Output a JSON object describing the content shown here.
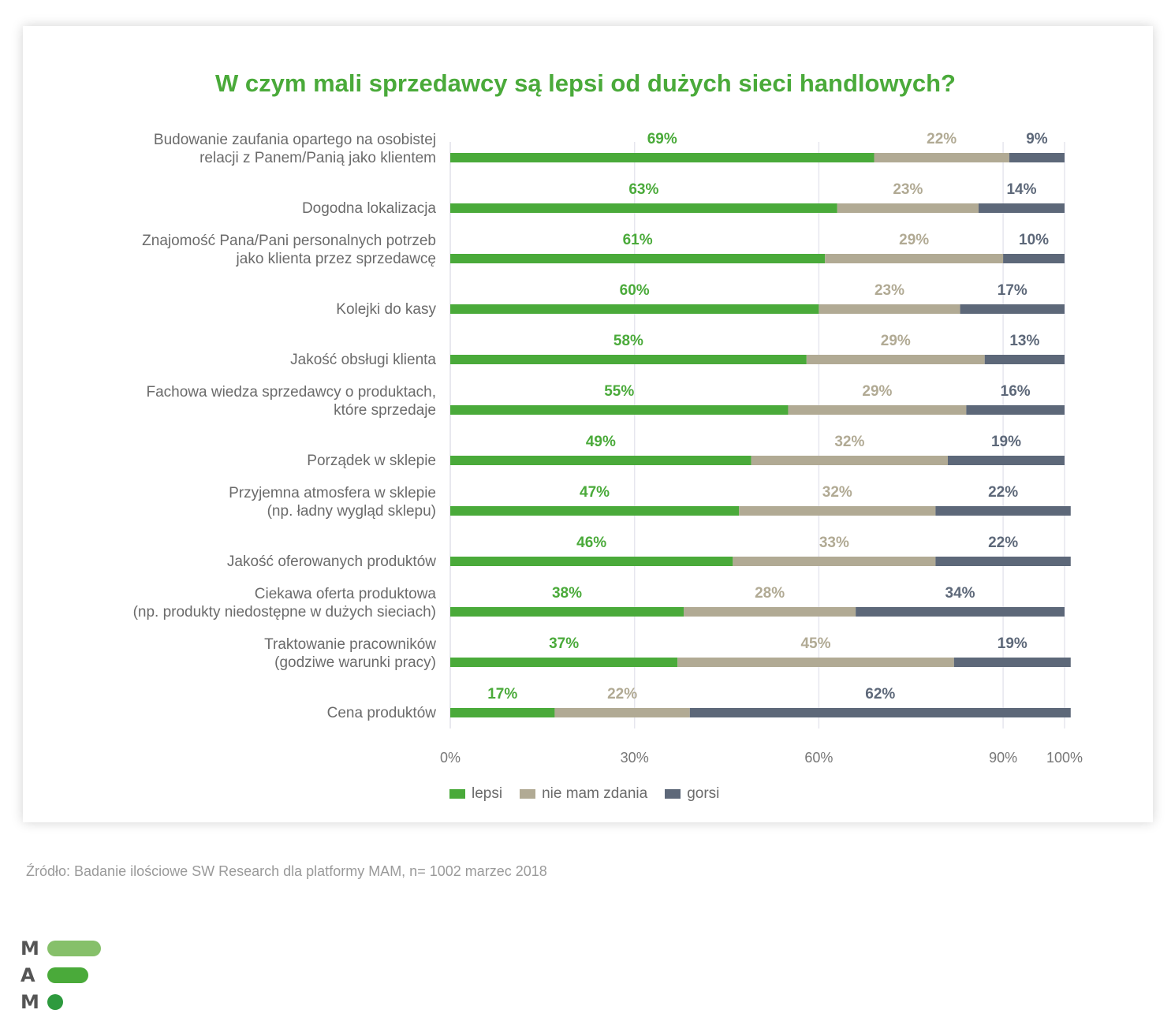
{
  "chart_data": {
    "type": "bar",
    "orientation": "horizontal",
    "stacked": true,
    "title": "W czym mali sprzedawcy są lepsi od dużych sieci handlowych?",
    "categories": [
      [
        "Budowanie zaufania opartego na osobistej",
        "relacji z Panem/Panią jako klientem"
      ],
      [
        "Dogodna lokalizacja"
      ],
      [
        "Znajomość Pana/Pani personalnych potrzeb",
        "jako klienta przez sprzedawcę"
      ],
      [
        "Kolejki do kasy"
      ],
      [
        "Jakość obsługi klienta"
      ],
      [
        "Fachowa wiedza sprzedawcy o produktach,",
        "które sprzedaje"
      ],
      [
        "Porządek w sklepie"
      ],
      [
        "Przyjemna atmosfera w sklepie",
        "(np. ładny wygląd sklepu)"
      ],
      [
        "Jakość oferowanych produktów"
      ],
      [
        "Ciekawa oferta produktowa",
        "(np. produkty niedostępne w dużych sieciach)"
      ],
      [
        "Traktowanie pracowników",
        "(godziwe warunki pracy)"
      ],
      [
        "Cena produktów"
      ]
    ],
    "series": [
      {
        "name": "lepsi",
        "color": "#4aaa3a",
        "values": [
          69,
          63,
          61,
          60,
          58,
          55,
          49,
          47,
          46,
          38,
          37,
          17
        ]
      },
      {
        "name": "nie mam zdania",
        "color": "#b1aa94",
        "values": [
          22,
          23,
          29,
          23,
          29,
          29,
          32,
          32,
          33,
          28,
          45,
          22
        ]
      },
      {
        "name": "gorsi",
        "color": "#5d6879",
        "values": [
          9,
          14,
          10,
          17,
          13,
          16,
          19,
          22,
          22,
          34,
          19,
          62
        ]
      }
    ],
    "xticks": [
      "0%",
      "30%",
      "60%",
      "90%",
      "100%"
    ],
    "xtick_values": [
      0,
      30,
      60,
      90,
      100
    ],
    "xlim": [
      0,
      100
    ],
    "grid": true,
    "legend_position": "bottom"
  },
  "source": "Źródło: Badanie ilościowe SW Research dla platformy MAM, n= 1002 marzec 2018",
  "logo": {
    "letters": [
      "M",
      "A",
      "M"
    ],
    "colors": [
      "#86c06a",
      "#4aaa3a",
      "#2e9a3e"
    ]
  }
}
